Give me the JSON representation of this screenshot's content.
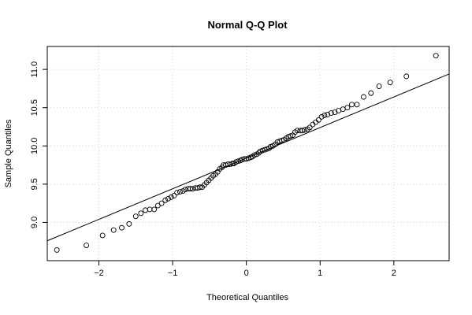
{
  "chart_data": {
    "type": "scatter",
    "title": "Normal Q-Q Plot",
    "xlabel": "Theoretical Quantiles",
    "ylabel": "Sample Quantiles",
    "xlim": [
      -2.7,
      2.75
    ],
    "ylim": [
      8.5,
      11.3
    ],
    "x_ticks": [
      -2,
      -1,
      0,
      1,
      2
    ],
    "y_ticks": [
      9.0,
      9.5,
      10.0,
      10.5,
      11.0
    ],
    "x_tick_labels": [
      "−2",
      "−1",
      "0",
      "1",
      "2"
    ],
    "y_tick_labels": [
      "9.0",
      "9.5",
      "10.0",
      "10.5",
      "11.0"
    ],
    "grid": true,
    "reference_line": {
      "slope": 0.4,
      "intercept": 9.84
    },
    "points": {
      "x": [
        -2.57,
        -2.17,
        -1.95,
        -1.8,
        -1.69,
        -1.59,
        -1.5,
        -1.43,
        -1.37,
        -1.31,
        -1.25,
        -1.2,
        -1.15,
        -1.1,
        -1.06,
        -1.02,
        -0.98,
        -0.94,
        -0.9,
        -0.86,
        -0.83,
        -0.79,
        -0.76,
        -0.73,
        -0.69,
        -0.66,
        -0.63,
        -0.6,
        -0.57,
        -0.54,
        -0.51,
        -0.48,
        -0.45,
        -0.42,
        -0.39,
        -0.36,
        -0.33,
        -0.31,
        -0.28,
        -0.25,
        -0.22,
        -0.19,
        -0.17,
        -0.14,
        -0.11,
        -0.08,
        -0.06,
        -0.03,
        0.0,
        0.03,
        0.06,
        0.08,
        0.11,
        0.14,
        0.17,
        0.19,
        0.22,
        0.25,
        0.28,
        0.31,
        0.33,
        0.36,
        0.39,
        0.42,
        0.45,
        0.48,
        0.51,
        0.54,
        0.57,
        0.6,
        0.63,
        0.66,
        0.69,
        0.73,
        0.76,
        0.79,
        0.83,
        0.86,
        0.9,
        0.94,
        0.98,
        1.02,
        1.06,
        1.1,
        1.15,
        1.2,
        1.25,
        1.31,
        1.37,
        1.43,
        1.5,
        1.59,
        1.69,
        1.8,
        1.95,
        2.17,
        2.57
      ],
      "y": [
        8.64,
        8.7,
        8.83,
        8.9,
        8.93,
        8.98,
        9.08,
        9.12,
        9.16,
        9.17,
        9.17,
        9.22,
        9.25,
        9.29,
        9.31,
        9.33,
        9.35,
        9.39,
        9.4,
        9.41,
        9.43,
        9.44,
        9.44,
        9.44,
        9.45,
        9.45,
        9.46,
        9.46,
        9.49,
        9.52,
        9.55,
        9.58,
        9.61,
        9.63,
        9.66,
        9.7,
        9.72,
        9.75,
        9.75,
        9.76,
        9.76,
        9.77,
        9.77,
        9.79,
        9.8,
        9.81,
        9.82,
        9.83,
        9.83,
        9.84,
        9.85,
        9.86,
        9.88,
        9.89,
        9.91,
        9.93,
        9.94,
        9.95,
        9.96,
        9.97,
        9.99,
        10.0,
        10.02,
        10.05,
        10.06,
        10.07,
        10.08,
        10.1,
        10.12,
        10.13,
        10.14,
        10.18,
        10.2,
        10.2,
        10.2,
        10.21,
        10.22,
        10.24,
        10.28,
        10.31,
        10.34,
        10.38,
        10.4,
        10.41,
        10.43,
        10.44,
        10.46,
        10.48,
        10.5,
        10.54,
        10.54,
        10.64,
        10.69,
        10.78,
        10.83,
        10.91,
        11.18
      ]
    }
  }
}
